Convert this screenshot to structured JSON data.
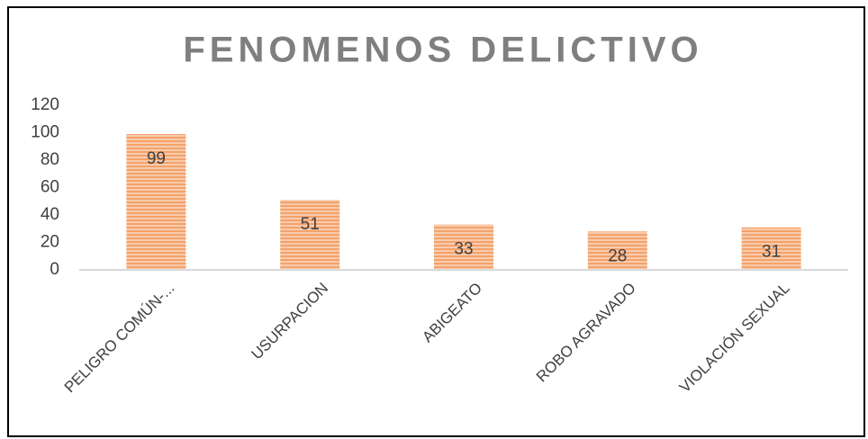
{
  "chart_data": {
    "type": "bar",
    "title": "FENOMENOS DELICTIVO",
    "categories": [
      "PELIGRO COMÚN-...",
      "USURPACION",
      "ABIGEATO",
      "ROBO AGRAVADO",
      "VIOLACIÓN SEXUAL"
    ],
    "values": [
      99,
      51,
      33,
      28,
      31
    ],
    "color": "#f4b183",
    "ylim": [
      0,
      120
    ],
    "yticks": [
      0,
      20,
      40,
      60,
      80,
      100,
      120
    ],
    "grid": false
  }
}
